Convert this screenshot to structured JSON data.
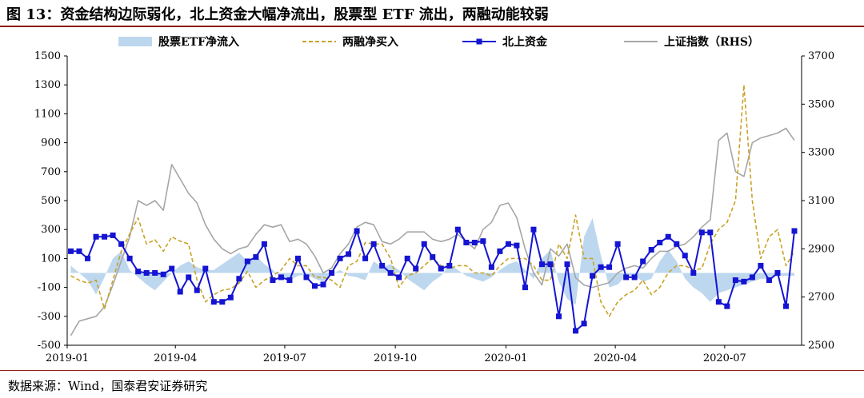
{
  "header": {
    "title": "图 13：资金结构边际弱化，北上资金大幅净流出，股票型 ETF 流出，两融动能较弱"
  },
  "footer": {
    "source": "数据来源：Wind，国泰君安证券研究"
  },
  "colors": {
    "etf": "#bdd7ee",
    "margin": "#c9a227",
    "north": "#1414d2",
    "sh": "#a6a6a6",
    "rule": "#8b1a1a"
  },
  "chart_data": {
    "type": "line",
    "legend_position": "top",
    "grid": false,
    "x": [
      "2019-01-04",
      "2019-01-11",
      "2019-01-18",
      "2019-01-25",
      "2019-02-01",
      "2019-02-08",
      "2019-02-15",
      "2019-02-22",
      "2019-03-01",
      "2019-03-08",
      "2019-03-15",
      "2019-03-22",
      "2019-03-29",
      "2019-04-05",
      "2019-04-12",
      "2019-04-19",
      "2019-04-26",
      "2019-05-03",
      "2019-05-10",
      "2019-05-17",
      "2019-05-24",
      "2019-05-31",
      "2019-06-07",
      "2019-06-14",
      "2019-06-21",
      "2019-06-28",
      "2019-07-05",
      "2019-07-12",
      "2019-07-19",
      "2019-07-26",
      "2019-08-02",
      "2019-08-09",
      "2019-08-16",
      "2019-08-23",
      "2019-08-30",
      "2019-09-06",
      "2019-09-13",
      "2019-09-20",
      "2019-09-27",
      "2019-10-04",
      "2019-10-11",
      "2019-10-18",
      "2019-10-25",
      "2019-11-01",
      "2019-11-08",
      "2019-11-15",
      "2019-11-22",
      "2019-11-29",
      "2019-12-06",
      "2019-12-13",
      "2019-12-20",
      "2019-12-27",
      "2020-01-03",
      "2020-01-10",
      "2020-01-17",
      "2020-01-24",
      "2020-01-31",
      "2020-02-07",
      "2020-02-14",
      "2020-02-21",
      "2020-02-28",
      "2020-03-06",
      "2020-03-13",
      "2020-03-20",
      "2020-03-27",
      "2020-04-03",
      "2020-04-10",
      "2020-04-17",
      "2020-04-24",
      "2020-05-01",
      "2020-05-08",
      "2020-05-15",
      "2020-05-22",
      "2020-05-29",
      "2020-06-05",
      "2020-06-12",
      "2020-06-19",
      "2020-06-26",
      "2020-07-03",
      "2020-07-10",
      "2020-07-17",
      "2020-07-24",
      "2020-07-31",
      "2020-08-07",
      "2020-08-14",
      "2020-08-21",
      "2020-08-28"
    ],
    "x_ticks": [
      "2019-01",
      "2019-04",
      "2019-07",
      "2019-10",
      "2020-01",
      "2020-04",
      "2020-07"
    ],
    "x_tick_dates": [
      "2019-01-01",
      "2019-04-01",
      "2019-07-01",
      "2019-10-01",
      "2020-01-01",
      "2020-04-01",
      "2020-07-01"
    ],
    "x_range": [
      "2019-01-01",
      "2020-09-03"
    ],
    "y_left": {
      "min": -500,
      "max": 1500,
      "ticks": [
        -500,
        -300,
        -100,
        100,
        300,
        500,
        700,
        900,
        1100,
        1300,
        1500
      ]
    },
    "y_right": {
      "min": 2500,
      "max": 3700,
      "ticks": [
        2500,
        2700,
        2900,
        3100,
        3300,
        3500,
        3700
      ]
    },
    "series": [
      {
        "name": "股票ETF净流入",
        "kind": "area",
        "axis": "left",
        "color_key": "etf",
        "values": [
          50,
          0,
          -50,
          -150,
          -30,
          100,
          150,
          20,
          -30,
          -80,
          -120,
          -60,
          0,
          50,
          80,
          40,
          20,
          20,
          60,
          100,
          140,
          80,
          120,
          60,
          20,
          -30,
          -50,
          -20,
          -10,
          -40,
          -60,
          -10,
          20,
          -20,
          -30,
          -50,
          80,
          40,
          60,
          20,
          -40,
          -80,
          -120,
          -60,
          -20,
          60,
          20,
          -20,
          -40,
          -60,
          -30,
          20,
          60,
          80,
          20,
          -40,
          100,
          160,
          -60,
          -180,
          -220,
          250,
          380,
          120,
          -100,
          -80,
          -20,
          -20,
          -60,
          -40,
          80,
          160,
          80,
          -40,
          -100,
          -140,
          -200,
          -140,
          -120,
          -100,
          -80,
          -60,
          -40,
          -40,
          -20,
          -20,
          -20
        ]
      },
      {
        "name": "两融净买入",
        "kind": "line",
        "dash": true,
        "axis": "left",
        "color_key": "margin",
        "values": [
          -20,
          -50,
          -70,
          -50,
          -250,
          -50,
          150,
          270,
          380,
          200,
          230,
          150,
          250,
          220,
          200,
          -50,
          -200,
          -150,
          -120,
          -110,
          -70,
          10,
          -100,
          -50,
          -20,
          20,
          100,
          50,
          50,
          -30,
          -30,
          -50,
          -100,
          50,
          80,
          210,
          200,
          200,
          100,
          -100,
          -20,
          0,
          50,
          100,
          50,
          30,
          50,
          50,
          0,
          0,
          -20,
          50,
          100,
          100,
          100,
          50,
          -50,
          -50,
          200,
          100,
          400,
          100,
          100,
          -200,
          -300,
          -200,
          -150,
          -120,
          -50,
          -150,
          -100,
          0,
          50,
          50,
          20,
          30,
          200,
          300,
          350,
          500,
          1300,
          500,
          100,
          250,
          300,
          50,
          150
        ]
      },
      {
        "name": "北上资金",
        "kind": "line",
        "marker": "square",
        "axis": "left",
        "color_key": "north",
        "values": [
          150,
          150,
          100,
          250,
          250,
          260,
          200,
          100,
          10,
          0,
          0,
          -10,
          30,
          -130,
          -30,
          -120,
          30,
          -200,
          -200,
          -170,
          -40,
          80,
          110,
          200,
          -50,
          -30,
          -50,
          100,
          -30,
          -90,
          -80,
          0,
          100,
          130,
          290,
          100,
          200,
          50,
          0,
          -30,
          100,
          30,
          200,
          110,
          30,
          50,
          300,
          210,
          210,
          220,
          40,
          150,
          200,
          190,
          -100,
          300,
          60,
          60,
          -300,
          60,
          -400,
          -350,
          -20,
          40,
          40,
          200,
          -30,
          -30,
          80,
          160,
          210,
          250,
          200,
          120,
          0,
          280,
          280,
          -200,
          -230,
          -50,
          -60,
          -30,
          50,
          -50,
          0,
          -230,
          290
        ]
      },
      {
        "name": "上证指数（RHS）",
        "kind": "line",
        "axis": "right",
        "color_key": "sh",
        "values": [
          2540,
          2600,
          2610,
          2620,
          2660,
          2750,
          2850,
          2950,
          3100,
          3080,
          3100,
          3060,
          3250,
          3190,
          3130,
          3090,
          3000,
          2940,
          2900,
          2880,
          2900,
          2910,
          2960,
          3000,
          2990,
          3000,
          2930,
          2940,
          2920,
          2870,
          2800,
          2820,
          2880,
          2920,
          2990,
          3010,
          3000,
          2930,
          2920,
          2940,
          2970,
          2970,
          2970,
          2940,
          2930,
          2940,
          2960,
          2930,
          2900,
          2980,
          3010,
          3080,
          3090,
          3030,
          2900,
          2800,
          2750,
          2900,
          2870,
          2920,
          2780,
          2750,
          2740,
          2750,
          2760,
          2800,
          2820,
          2830,
          2820,
          2860,
          2890,
          2890,
          2910,
          2920,
          2950,
          2990,
          3020,
          3350,
          3380,
          3220,
          3200,
          3340,
          3360,
          3370,
          3380,
          3400,
          3350
        ]
      }
    ]
  }
}
